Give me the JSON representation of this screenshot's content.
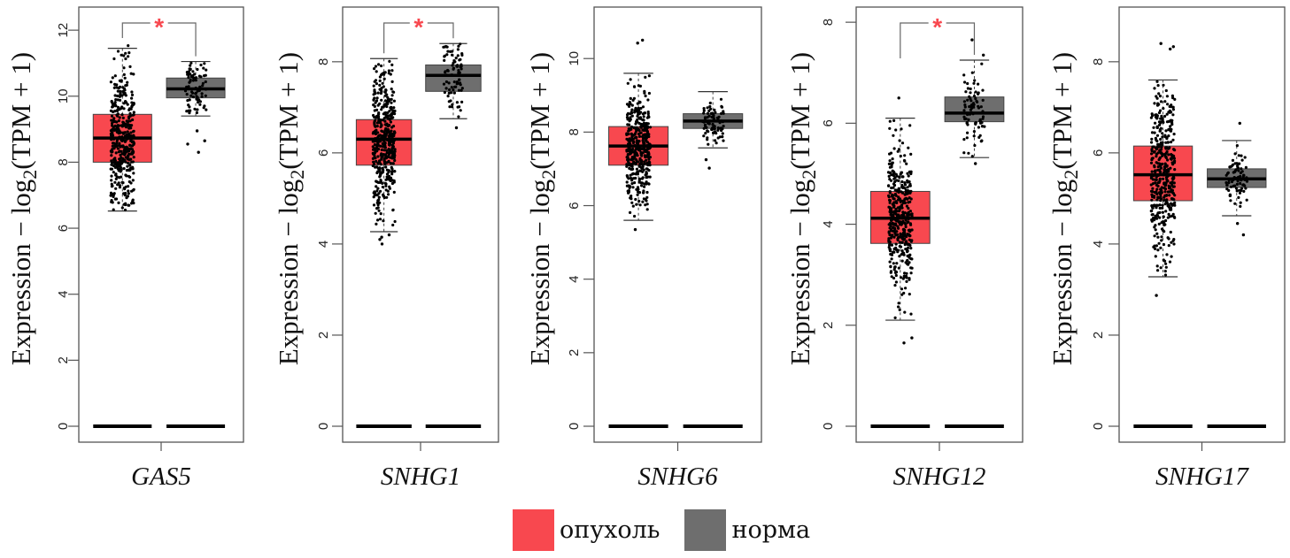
{
  "colors": {
    "tumor": "#f8484f",
    "normal": "#6e6e6e",
    "significance": "#f8484f",
    "axis": "#555555",
    "points": "#000000"
  },
  "legend": {
    "items": [
      {
        "label": "опухоль",
        "group": "tumor"
      },
      {
        "label": "норма",
        "group": "normal"
      }
    ]
  },
  "chart_data": [
    {
      "type": "boxplot",
      "gene": "GAS5",
      "ylabel": "Expression − log2(TPM + 1)",
      "ylim": [
        -0.5,
        12.7
      ],
      "yticks": [
        0,
        2,
        4,
        6,
        8,
        10,
        12
      ],
      "significant": true,
      "significance_label": "*",
      "groups": [
        {
          "name": "опухоль",
          "group": "tumor",
          "q1": 8.0,
          "median": 8.73,
          "q3": 9.45,
          "whisker_low": 6.52,
          "whisker_high": 11.45,
          "point_count": 420,
          "point_min": 6.55,
          "point_max": 11.6,
          "outliers": []
        },
        {
          "name": "норма",
          "group": "normal",
          "q1": 9.95,
          "median": 10.22,
          "q3": 10.55,
          "whisker_low": 9.4,
          "whisker_high": 11.05,
          "point_count": 80,
          "point_min": 9.4,
          "point_max": 11.05,
          "outliers": [
            8.95,
            8.65,
            8.55,
            8.3
          ]
        }
      ]
    },
    {
      "type": "boxplot",
      "gene": "SNHG1",
      "ylabel": "Expression − log2(TPM + 1)",
      "ylim": [
        -0.35,
        9.2
      ],
      "yticks": [
        0,
        2,
        4,
        6,
        8
      ],
      "significant": true,
      "significance_label": "*",
      "groups": [
        {
          "name": "опухоль",
          "group": "tumor",
          "q1": 5.73,
          "median": 6.3,
          "q3": 6.73,
          "whisker_low": 4.27,
          "whisker_high": 8.07,
          "point_count": 420,
          "point_min": 4.3,
          "point_max": 8.07,
          "outliers": [
            4.2,
            4.1,
            4.0,
            4.15
          ]
        },
        {
          "name": "норма",
          "group": "normal",
          "q1": 7.35,
          "median": 7.7,
          "q3": 7.93,
          "whisker_low": 6.75,
          "whisker_high": 8.4,
          "point_count": 80,
          "point_min": 6.75,
          "point_max": 8.4,
          "outliers": [
            6.55
          ]
        }
      ]
    },
    {
      "type": "boxplot",
      "gene": "SNHG6",
      "ylabel": "Expression − log2(TPM + 1)",
      "ylim": [
        -0.45,
        11.4
      ],
      "yticks": [
        0,
        2,
        4,
        6,
        8,
        10
      ],
      "significant": false,
      "significance_label": "",
      "groups": [
        {
          "name": "опухоль",
          "group": "tumor",
          "q1": 7.1,
          "median": 7.62,
          "q3": 8.15,
          "whisker_low": 5.6,
          "whisker_high": 9.6,
          "point_count": 420,
          "point_min": 5.65,
          "point_max": 9.6,
          "outliers": [
            10.5,
            10.42,
            5.35
          ]
        },
        {
          "name": "норма",
          "group": "normal",
          "q1": 8.1,
          "median": 8.3,
          "q3": 8.5,
          "whisker_low": 7.57,
          "whisker_high": 9.1,
          "point_count": 80,
          "point_min": 7.57,
          "point_max": 9.1,
          "outliers": [
            7.25,
            7.02
          ]
        }
      ]
    },
    {
      "type": "boxplot",
      "gene": "SNHG12",
      "ylabel": "Expression − log2(TPM + 1)",
      "ylim": [
        -0.32,
        8.3
      ],
      "yticks": [
        0,
        2,
        4,
        6,
        8
      ],
      "significant": true,
      "significance_label": "*",
      "groups": [
        {
          "name": "опухоль",
          "group": "tumor",
          "q1": 3.62,
          "median": 4.12,
          "q3": 4.65,
          "whisker_low": 2.1,
          "whisker_high": 6.1,
          "point_count": 420,
          "point_min": 2.1,
          "point_max": 6.1,
          "outliers": [
            6.5,
            1.75,
            1.65
          ]
        },
        {
          "name": "норма",
          "group": "normal",
          "q1": 6.03,
          "median": 6.2,
          "q3": 6.52,
          "whisker_low": 5.32,
          "whisker_high": 7.25,
          "point_count": 80,
          "point_min": 5.32,
          "point_max": 7.25,
          "outliers": [
            7.65,
            7.35,
            5.2
          ]
        }
      ]
    },
    {
      "type": "boxplot",
      "gene": "SNHG17",
      "ylabel": "Expression − log2(TPM + 1)",
      "ylim": [
        -0.35,
        9.2
      ],
      "yticks": [
        0,
        2,
        4,
        6,
        8
      ],
      "significant": false,
      "significance_label": "",
      "groups": [
        {
          "name": "опухоль",
          "group": "tumor",
          "q1": 4.95,
          "median": 5.52,
          "q3": 6.15,
          "whisker_low": 3.28,
          "whisker_high": 7.6,
          "point_count": 420,
          "point_min": 3.28,
          "point_max": 7.6,
          "outliers": [
            8.4,
            8.33,
            8.28,
            2.87
          ]
        },
        {
          "name": "норма",
          "group": "normal",
          "q1": 5.24,
          "median": 5.43,
          "q3": 5.65,
          "whisker_low": 4.62,
          "whisker_high": 6.27,
          "point_count": 80,
          "point_min": 4.62,
          "point_max": 6.27,
          "outliers": [
            6.65,
            4.45,
            4.2
          ]
        }
      ]
    }
  ]
}
